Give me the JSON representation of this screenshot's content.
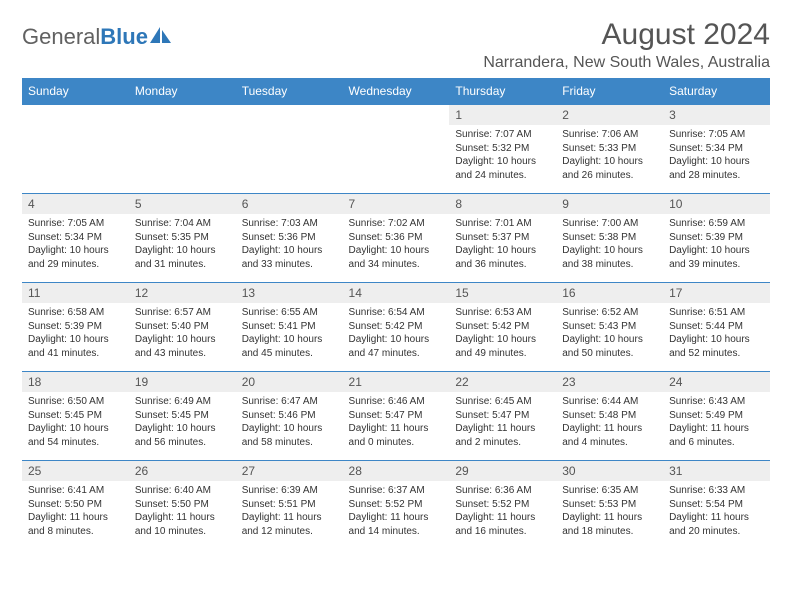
{
  "brand": {
    "text_general": "General",
    "text_blue": "Blue",
    "accent_color": "#2e77b8",
    "gray_color": "#616161"
  },
  "header": {
    "month_title": "August 2024",
    "location": "Narrandera, New South Wales, Australia"
  },
  "colors": {
    "header_bg": "#3d86c6",
    "header_text": "#ffffff",
    "daynum_bg": "#eeeeee",
    "border": "#3d86c6"
  },
  "day_labels": [
    "Sunday",
    "Monday",
    "Tuesday",
    "Wednesday",
    "Thursday",
    "Friday",
    "Saturday"
  ],
  "weeks": [
    [
      null,
      null,
      null,
      null,
      {
        "n": "1",
        "sr": "Sunrise: 7:07 AM",
        "ss": "Sunset: 5:32 PM",
        "dl": "Daylight: 10 hours and 24 minutes."
      },
      {
        "n": "2",
        "sr": "Sunrise: 7:06 AM",
        "ss": "Sunset: 5:33 PM",
        "dl": "Daylight: 10 hours and 26 minutes."
      },
      {
        "n": "3",
        "sr": "Sunrise: 7:05 AM",
        "ss": "Sunset: 5:34 PM",
        "dl": "Daylight: 10 hours and 28 minutes."
      }
    ],
    [
      {
        "n": "4",
        "sr": "Sunrise: 7:05 AM",
        "ss": "Sunset: 5:34 PM",
        "dl": "Daylight: 10 hours and 29 minutes."
      },
      {
        "n": "5",
        "sr": "Sunrise: 7:04 AM",
        "ss": "Sunset: 5:35 PM",
        "dl": "Daylight: 10 hours and 31 minutes."
      },
      {
        "n": "6",
        "sr": "Sunrise: 7:03 AM",
        "ss": "Sunset: 5:36 PM",
        "dl": "Daylight: 10 hours and 33 minutes."
      },
      {
        "n": "7",
        "sr": "Sunrise: 7:02 AM",
        "ss": "Sunset: 5:36 PM",
        "dl": "Daylight: 10 hours and 34 minutes."
      },
      {
        "n": "8",
        "sr": "Sunrise: 7:01 AM",
        "ss": "Sunset: 5:37 PM",
        "dl": "Daylight: 10 hours and 36 minutes."
      },
      {
        "n": "9",
        "sr": "Sunrise: 7:00 AM",
        "ss": "Sunset: 5:38 PM",
        "dl": "Daylight: 10 hours and 38 minutes."
      },
      {
        "n": "10",
        "sr": "Sunrise: 6:59 AM",
        "ss": "Sunset: 5:39 PM",
        "dl": "Daylight: 10 hours and 39 minutes."
      }
    ],
    [
      {
        "n": "11",
        "sr": "Sunrise: 6:58 AM",
        "ss": "Sunset: 5:39 PM",
        "dl": "Daylight: 10 hours and 41 minutes."
      },
      {
        "n": "12",
        "sr": "Sunrise: 6:57 AM",
        "ss": "Sunset: 5:40 PM",
        "dl": "Daylight: 10 hours and 43 minutes."
      },
      {
        "n": "13",
        "sr": "Sunrise: 6:55 AM",
        "ss": "Sunset: 5:41 PM",
        "dl": "Daylight: 10 hours and 45 minutes."
      },
      {
        "n": "14",
        "sr": "Sunrise: 6:54 AM",
        "ss": "Sunset: 5:42 PM",
        "dl": "Daylight: 10 hours and 47 minutes."
      },
      {
        "n": "15",
        "sr": "Sunrise: 6:53 AM",
        "ss": "Sunset: 5:42 PM",
        "dl": "Daylight: 10 hours and 49 minutes."
      },
      {
        "n": "16",
        "sr": "Sunrise: 6:52 AM",
        "ss": "Sunset: 5:43 PM",
        "dl": "Daylight: 10 hours and 50 minutes."
      },
      {
        "n": "17",
        "sr": "Sunrise: 6:51 AM",
        "ss": "Sunset: 5:44 PM",
        "dl": "Daylight: 10 hours and 52 minutes."
      }
    ],
    [
      {
        "n": "18",
        "sr": "Sunrise: 6:50 AM",
        "ss": "Sunset: 5:45 PM",
        "dl": "Daylight: 10 hours and 54 minutes."
      },
      {
        "n": "19",
        "sr": "Sunrise: 6:49 AM",
        "ss": "Sunset: 5:45 PM",
        "dl": "Daylight: 10 hours and 56 minutes."
      },
      {
        "n": "20",
        "sr": "Sunrise: 6:47 AM",
        "ss": "Sunset: 5:46 PM",
        "dl": "Daylight: 10 hours and 58 minutes."
      },
      {
        "n": "21",
        "sr": "Sunrise: 6:46 AM",
        "ss": "Sunset: 5:47 PM",
        "dl": "Daylight: 11 hours and 0 minutes."
      },
      {
        "n": "22",
        "sr": "Sunrise: 6:45 AM",
        "ss": "Sunset: 5:47 PM",
        "dl": "Daylight: 11 hours and 2 minutes."
      },
      {
        "n": "23",
        "sr": "Sunrise: 6:44 AM",
        "ss": "Sunset: 5:48 PM",
        "dl": "Daylight: 11 hours and 4 minutes."
      },
      {
        "n": "24",
        "sr": "Sunrise: 6:43 AM",
        "ss": "Sunset: 5:49 PM",
        "dl": "Daylight: 11 hours and 6 minutes."
      }
    ],
    [
      {
        "n": "25",
        "sr": "Sunrise: 6:41 AM",
        "ss": "Sunset: 5:50 PM",
        "dl": "Daylight: 11 hours and 8 minutes."
      },
      {
        "n": "26",
        "sr": "Sunrise: 6:40 AM",
        "ss": "Sunset: 5:50 PM",
        "dl": "Daylight: 11 hours and 10 minutes."
      },
      {
        "n": "27",
        "sr": "Sunrise: 6:39 AM",
        "ss": "Sunset: 5:51 PM",
        "dl": "Daylight: 11 hours and 12 minutes."
      },
      {
        "n": "28",
        "sr": "Sunrise: 6:37 AM",
        "ss": "Sunset: 5:52 PM",
        "dl": "Daylight: 11 hours and 14 minutes."
      },
      {
        "n": "29",
        "sr": "Sunrise: 6:36 AM",
        "ss": "Sunset: 5:52 PM",
        "dl": "Daylight: 11 hours and 16 minutes."
      },
      {
        "n": "30",
        "sr": "Sunrise: 6:35 AM",
        "ss": "Sunset: 5:53 PM",
        "dl": "Daylight: 11 hours and 18 minutes."
      },
      {
        "n": "31",
        "sr": "Sunrise: 6:33 AM",
        "ss": "Sunset: 5:54 PM",
        "dl": "Daylight: 11 hours and 20 minutes."
      }
    ]
  ]
}
